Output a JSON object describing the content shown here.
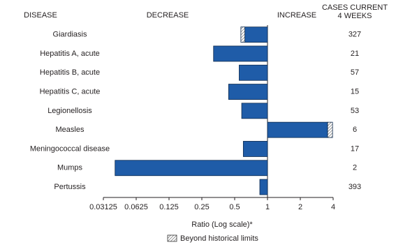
{
  "chart_data": {
    "type": "bar",
    "orientation": "horizontal",
    "log_scale": true,
    "log_base": 2,
    "column_headers": {
      "disease": "DISEASE",
      "decrease": "DECREASE",
      "increase": "INCREASE",
      "cases": [
        "CASES CURRENT",
        "4 WEEKS"
      ]
    },
    "categories": [
      "Giardiasis",
      "Hepatitis A, acute",
      "Hepatitis B, acute",
      "Hepatitis C, acute",
      "Legionellosis",
      "Measles",
      "Meningococcal disease",
      "Mumps",
      "Pertussis"
    ],
    "values": [
      0.57,
      0.32,
      0.55,
      0.44,
      0.58,
      3.95,
      0.6,
      0.04,
      0.85
    ],
    "historical_limits": [
      0.62,
      null,
      null,
      null,
      null,
      3.56,
      null,
      null,
      null
    ],
    "cases_current_4_weeks": [
      327,
      21,
      57,
      15,
      53,
      6,
      17,
      2,
      393
    ],
    "color": "#1f5ca8",
    "edge_color": "#0d2a4e",
    "xlim": [
      0.03125,
      4
    ],
    "xticks": [
      0.03125,
      0.0625,
      0.125,
      0.25,
      0.5,
      1,
      2,
      4
    ],
    "xlabel": "Ratio (Log scale)*",
    "legend": {
      "label": "Beyond historical limits"
    }
  }
}
